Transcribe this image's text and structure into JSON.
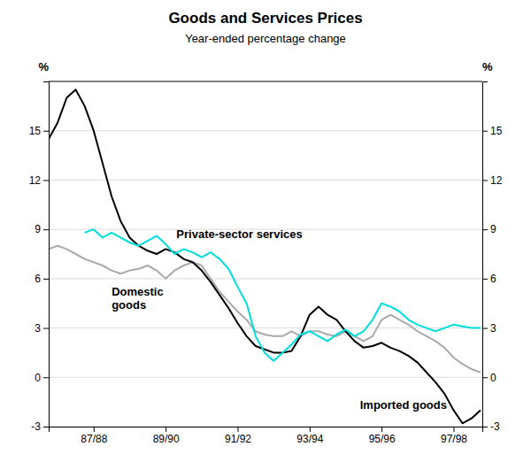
{
  "chart_data": {
    "type": "line",
    "title": "Goods and Services Prices",
    "subtitle": "Year-ended percentage change",
    "ylabel": "%",
    "y2label": "%",
    "xlim": [
      1986.25,
      1998.3
    ],
    "xticks": [
      {
        "value": 1987.5,
        "label": "87/88"
      },
      {
        "value": 1989.5,
        "label": "89/90"
      },
      {
        "value": 1991.5,
        "label": "91/92"
      },
      {
        "value": 1993.5,
        "label": "93/94"
      },
      {
        "value": 1995.5,
        "label": "95/96"
      },
      {
        "value": 1997.5,
        "label": "97/98"
      }
    ],
    "ylim": [
      -3,
      18
    ],
    "yticks": [
      -3,
      0,
      3,
      6,
      9,
      12,
      15
    ],
    "y2lim": [
      -3,
      18
    ],
    "y2ticks": [
      -3,
      0,
      3,
      6,
      9,
      12,
      15
    ],
    "grid": true,
    "annotations": [
      {
        "text": "Private-sector services",
        "x": 1989.8,
        "y": 8.7
      },
      {
        "text": "Domestic\ngoods",
        "x": 1988.0,
        "y": 4.8
      },
      {
        "text": "Imported goods",
        "x": 1994.9,
        "y": -1.7
      }
    ],
    "series": [
      {
        "color": "#aaaaaa",
        "x": [
          1986.25,
          1986.5,
          1986.75,
          1987.0,
          1987.25,
          1987.5,
          1987.75,
          1988.0,
          1988.25,
          1988.5,
          1988.75,
          1989.0,
          1989.25,
          1989.5,
          1989.75,
          1990.0,
          1990.25,
          1990.5,
          1990.75,
          1991.0,
          1991.25,
          1991.5,
          1991.75,
          1992.0,
          1992.25,
          1992.5,
          1992.75,
          1993.0,
          1993.25,
          1993.5,
          1993.75,
          1994.0,
          1994.25,
          1994.5,
          1994.75,
          1995.0,
          1995.25,
          1995.5,
          1995.75,
          1996.0,
          1996.25,
          1996.5,
          1996.75,
          1997.0,
          1997.25,
          1997.5,
          1997.75,
          1998.0,
          1998.25
        ],
        "values": [
          7.8,
          8.0,
          7.8,
          7.5,
          7.2,
          7.0,
          6.8,
          6.5,
          6.3,
          6.5,
          6.6,
          6.8,
          6.5,
          6.0,
          6.5,
          6.8,
          7.0,
          6.8,
          6.0,
          5.2,
          4.6,
          4.0,
          3.5,
          2.8,
          2.6,
          2.5,
          2.5,
          2.8,
          2.5,
          2.8,
          2.8,
          2.6,
          2.5,
          2.8,
          2.5,
          2.2,
          2.5,
          3.5,
          3.8,
          3.5,
          3.2,
          2.8,
          2.5,
          2.2,
          1.8,
          1.2,
          0.8,
          0.5,
          0.3
        ]
      },
      {
        "color": "#000000",
        "x": [
          1986.25,
          1986.5,
          1986.75,
          1987.0,
          1987.25,
          1987.5,
          1987.75,
          1988.0,
          1988.25,
          1988.5,
          1988.75,
          1989.0,
          1989.25,
          1989.5,
          1989.75,
          1990.0,
          1990.25,
          1990.5,
          1990.75,
          1991.0,
          1991.25,
          1991.5,
          1991.75,
          1992.0,
          1992.25,
          1992.5,
          1992.75,
          1993.0,
          1993.25,
          1993.5,
          1993.75,
          1994.0,
          1994.25,
          1994.5,
          1994.75,
          1995.0,
          1995.25,
          1995.5,
          1995.75,
          1996.0,
          1996.25,
          1996.5,
          1996.75,
          1997.0,
          1997.25,
          1997.5,
          1997.75,
          1998.0,
          1998.25
        ],
        "values": [
          14.5,
          15.5,
          17.0,
          17.5,
          16.5,
          15.0,
          13.0,
          11.0,
          9.5,
          8.5,
          8.0,
          7.7,
          7.5,
          7.8,
          7.6,
          7.2,
          7.0,
          6.5,
          5.8,
          5.0,
          4.2,
          3.3,
          2.5,
          1.9,
          1.7,
          1.5,
          1.5,
          1.6,
          2.5,
          3.8,
          4.3,
          3.8,
          3.5,
          2.8,
          2.2,
          1.8,
          1.9,
          2.1,
          1.8,
          1.6,
          1.3,
          0.9,
          0.3,
          -0.3,
          -1.0,
          -2.0,
          -2.8,
          -2.5,
          -2.0
        ]
      },
      {
        "color": "#00dddd",
        "x": [
          1987.25,
          1987.5,
          1987.75,
          1988.0,
          1988.25,
          1988.5,
          1988.75,
          1989.0,
          1989.25,
          1989.5,
          1989.75,
          1990.0,
          1990.25,
          1990.5,
          1990.75,
          1991.0,
          1991.25,
          1991.5,
          1991.75,
          1992.0,
          1992.25,
          1992.5,
          1992.75,
          1993.0,
          1993.25,
          1993.5,
          1993.75,
          1994.0,
          1994.25,
          1994.5,
          1994.75,
          1995.0,
          1995.25,
          1995.5,
          1995.75,
          1996.0,
          1996.25,
          1996.5,
          1996.75,
          1997.0,
          1997.25,
          1997.5,
          1997.75,
          1998.0,
          1998.25
        ],
        "values": [
          8.8,
          9.0,
          8.5,
          8.8,
          8.5,
          8.2,
          8.0,
          8.3,
          8.6,
          8.1,
          7.5,
          7.8,
          7.6,
          7.3,
          7.6,
          7.2,
          6.6,
          5.5,
          4.5,
          2.5,
          1.5,
          1.0,
          1.5,
          2.0,
          2.6,
          2.8,
          2.5,
          2.2,
          2.6,
          2.9,
          2.5,
          2.8,
          3.5,
          4.5,
          4.3,
          4.0,
          3.5,
          3.2,
          3.0,
          2.8,
          3.0,
          3.2,
          3.1,
          3.0,
          3.0
        ]
      }
    ]
  }
}
